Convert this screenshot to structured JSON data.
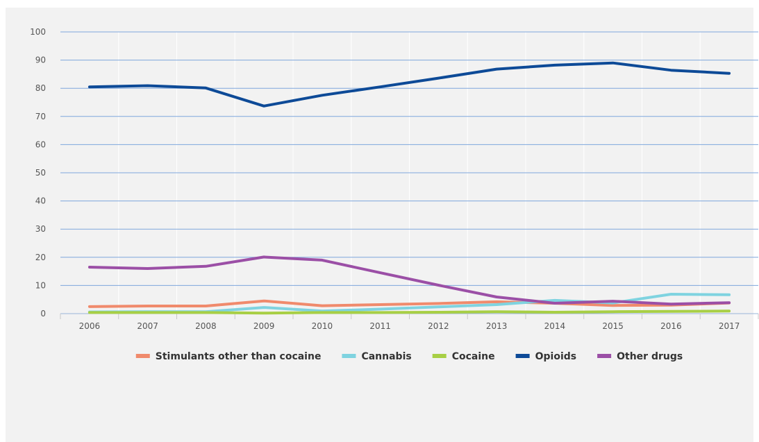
{
  "chart_data": {
    "type": "line",
    "title": "",
    "xlabel": "",
    "ylabel": "",
    "categories": [
      "2006",
      "2007",
      "2008",
      "2009",
      "2010",
      "2011",
      "2012",
      "2013",
      "2014",
      "2015",
      "2016",
      "2017"
    ],
    "ylim": [
      0,
      100
    ],
    "yticks": [
      "0",
      "10",
      "20",
      "30",
      "40",
      "50",
      "60",
      "70",
      "80",
      "90",
      "100"
    ],
    "grid": true,
    "legend_position": "bottom",
    "series": [
      {
        "name": "Stimulants other than cocaine",
        "color": "#f08a6c",
        "values": [
          2.5,
          2.7,
          2.7,
          4.5,
          2.8,
          3.2,
          3.6,
          4.2,
          3.7,
          2.9,
          3.0,
          3.8
        ]
      },
      {
        "name": "Cannabis",
        "color": "#7fd3e0",
        "values": [
          0.6,
          0.7,
          0.7,
          2.2,
          0.9,
          1.6,
          2.4,
          3.2,
          4.7,
          3.8,
          6.9,
          6.7
        ]
      },
      {
        "name": "Cocaine",
        "color": "#a8cf45",
        "values": [
          0.4,
          0.4,
          0.4,
          0.2,
          0.4,
          0.4,
          0.5,
          0.7,
          0.5,
          0.7,
          0.8,
          0.9
        ]
      },
      {
        "name": "Opioids",
        "color": "#0d4a97",
        "values": [
          80.5,
          80.9,
          80.1,
          73.7,
          77.5,
          80.5,
          83.6,
          86.8,
          88.2,
          89.0,
          86.4,
          85.3
        ]
      },
      {
        "name": "Other drugs",
        "color": "#9b4fa6",
        "values": [
          16.5,
          16.0,
          16.8,
          20.1,
          19.0,
          14.5,
          10.1,
          5.9,
          3.7,
          4.4,
          3.4,
          3.9
        ]
      }
    ]
  }
}
